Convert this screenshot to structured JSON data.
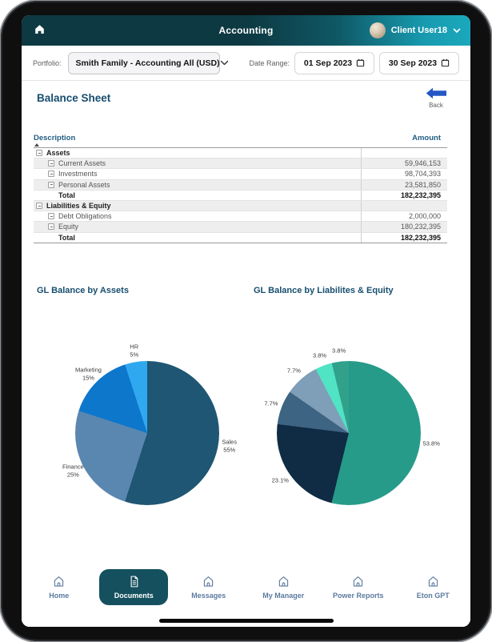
{
  "header": {
    "title": "Accounting",
    "user_name": "Client User18",
    "bg_gradient": [
      "#0d3942",
      "#1ba8bc"
    ]
  },
  "filters": {
    "portfolio_label": "Portfolio:",
    "portfolio_value": "Smith Family - Accounting All (USD)",
    "date_range_label": "Date Range:",
    "date_from": "01 Sep 2023",
    "date_to": "30 Sep 2023"
  },
  "page": {
    "title": "Balance Sheet",
    "back_label": "Back",
    "back_arrow_color": "#2456c5",
    "heading_color": "#174e6f"
  },
  "table": {
    "columns": {
      "description": "Description",
      "amount": "Amount"
    },
    "rows": [
      {
        "label": "Assets",
        "amount": "",
        "level": 0,
        "bold": true,
        "expand": true
      },
      {
        "label": "Current Assets",
        "amount": "59,946,153",
        "level": 1,
        "bold": false,
        "expand": true
      },
      {
        "label": "Investments",
        "amount": "98,704,393",
        "level": 1,
        "bold": false,
        "expand": true
      },
      {
        "label": "Personal Assets",
        "amount": "23,581,850",
        "level": 1,
        "bold": false,
        "expand": true
      },
      {
        "label": "Total",
        "amount": "182,232,395",
        "level": 1,
        "bold": true,
        "expand": false
      },
      {
        "label": "Liabilities & Equity",
        "amount": "",
        "level": 0,
        "bold": true,
        "expand": true
      },
      {
        "label": "Debt Obligations",
        "amount": "2,000,000",
        "level": 1,
        "bold": false,
        "expand": true
      },
      {
        "label": "Equity",
        "amount": "180,232,395",
        "level": 1,
        "bold": false,
        "expand": true
      },
      {
        "label": "Total",
        "amount": "182,232,395",
        "level": 1,
        "bold": true,
        "expand": false
      }
    ]
  },
  "chart_data": [
    {
      "type": "pie",
      "title": "GL Balance by Assets",
      "categories": [
        "Sales",
        "Finance",
        "Marketing",
        "HR"
      ],
      "values": [
        55,
        25,
        15,
        5
      ],
      "colors": [
        "#1f5673",
        "#5a87b0",
        "#0d77cc",
        "#2fa8f0"
      ],
      "slice_labels": [
        "Sales\n55%",
        "Finance\n25%",
        "Marketing\n15%",
        "HR\n5%"
      ],
      "start_angle": "top",
      "direction": "clockwise",
      "legend": "none"
    },
    {
      "type": "pie",
      "title": "GL Balance by Liabilites & Equity",
      "categories": [
        "53.8%",
        "23.1%",
        "7.7%",
        "7.7%",
        "3.8%",
        "3.8%"
      ],
      "values": [
        53.8,
        23.1,
        7.7,
        7.7,
        3.8,
        3.8
      ],
      "colors": [
        "#279b8a",
        "#102c44",
        "#3d6482",
        "#7f9eb8",
        "#50e3c4",
        "#32a18c"
      ],
      "slice_labels": [
        "53.8%",
        "23.1%",
        "7.7%",
        "7.7%",
        "3.8%",
        "3.8%"
      ],
      "start_angle": "top",
      "direction": "clockwise",
      "legend": "none"
    }
  ],
  "bottom_nav": {
    "active": "Documents",
    "active_bg": "#15505f",
    "inactive_color": "#5b7a9e",
    "items": [
      {
        "label": "Home"
      },
      {
        "label": "Documents"
      },
      {
        "label": "Messages"
      },
      {
        "label": "My Manager"
      },
      {
        "label": "Power Reports"
      },
      {
        "label": "Eton GPT"
      }
    ]
  },
  "icons": {
    "header_left": "home-icon",
    "user_menu": "chevron-down-icon",
    "portfolio": "chevron-down-icon",
    "dates": "calendar-icon",
    "back": "arrow-left-icon",
    "sort": "sort-asc-icon",
    "tree": "collapse-minus-icon",
    "nav_default": "home-icon",
    "nav_documents": "document-icon",
    "system": "home-indicator-bar"
  }
}
